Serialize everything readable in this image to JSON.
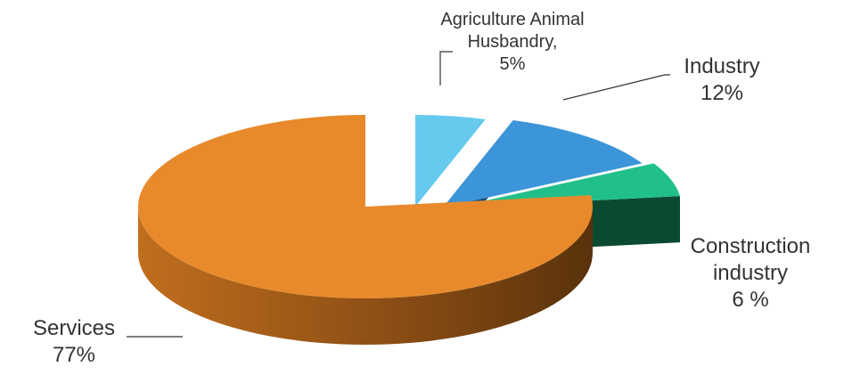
{
  "chart_data": {
    "type": "pie",
    "style": "3d-exploded",
    "title": "",
    "slices": [
      {
        "id": "agri",
        "label_lines": [
          "Agriculture Animal",
          "Husbandry,",
          "5%"
        ],
        "value": 5,
        "colors": {
          "top": "#66C9EE",
          "side": "#3B86B8",
          "side_dark": "#2E6E98"
        }
      },
      {
        "id": "industry",
        "label_lines": [
          "Industry",
          "12%"
        ],
        "value": 12,
        "colors": {
          "top": "#3B95D8",
          "side": "#1F4F78",
          "side_dark": "#163C5C"
        }
      },
      {
        "id": "construction",
        "label_lines": [
          "Construction",
          "industry",
          "6 %"
        ],
        "value": 6,
        "colors": {
          "top": "#21C08A",
          "side": "#0B5A3A",
          "side_dark": "#0A4A31"
        }
      },
      {
        "id": "services",
        "label_lines": [
          "Services",
          "77%"
        ],
        "value": 77,
        "colors": {
          "top": "#E88A2C",
          "side": "#9A5413",
          "side_dark": "#5E330C"
        }
      }
    ]
  }
}
